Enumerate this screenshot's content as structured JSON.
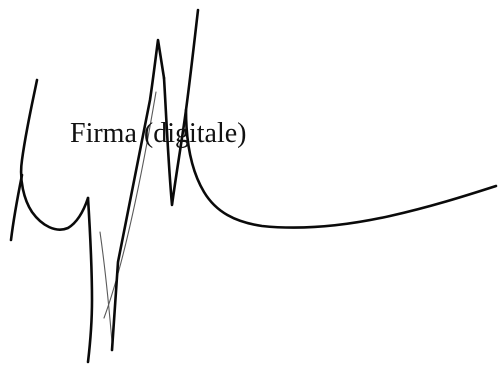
{
  "document": {
    "caption": "Firma (digitale)"
  },
  "signature": {
    "kind": "handwritten-signature",
    "ink_color": "#0a0a0a",
    "background_color": "#ffffff"
  }
}
